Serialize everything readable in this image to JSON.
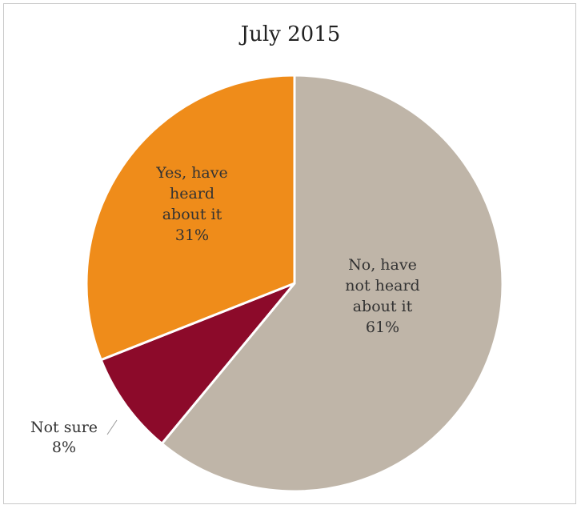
{
  "chart_data": {
    "type": "pie",
    "title": "July 2015",
    "slices": [
      {
        "name": "No, have not heard about it",
        "label_lines": [
          "No, have",
          "not heard",
          "about it"
        ],
        "value": 61,
        "value_label": "61%",
        "color": "#bfb5a8"
      },
      {
        "name": "Not sure",
        "label_lines": [
          "Not sure"
        ],
        "value": 8,
        "value_label": "8%",
        "color": "#8c0a2a"
      },
      {
        "name": "Yes, have heard about it",
        "label_lines": [
          "Yes, have",
          "heard",
          "about it"
        ],
        "value": 31,
        "value_label": "31%",
        "color": "#ef8c1a"
      }
    ]
  }
}
